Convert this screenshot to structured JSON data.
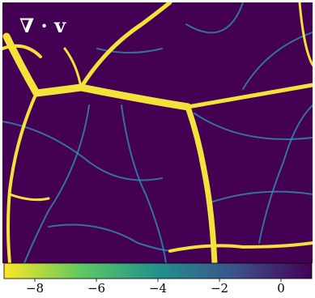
{
  "chart_data": {
    "type": "heatmap",
    "annotation": "∇ · v",
    "colormap": [
      "#fde725",
      "#5ec962",
      "#21918c",
      "#3b528b",
      "#440154"
    ],
    "clim": [
      -9,
      1
    ],
    "cticks": [
      {
        "value": -8,
        "label": "−8"
      },
      {
        "value": -6,
        "label": "−6"
      },
      {
        "value": -4,
        "label": "−4"
      },
      {
        "value": -2,
        "label": "−2"
      },
      0
    ]
  }
}
